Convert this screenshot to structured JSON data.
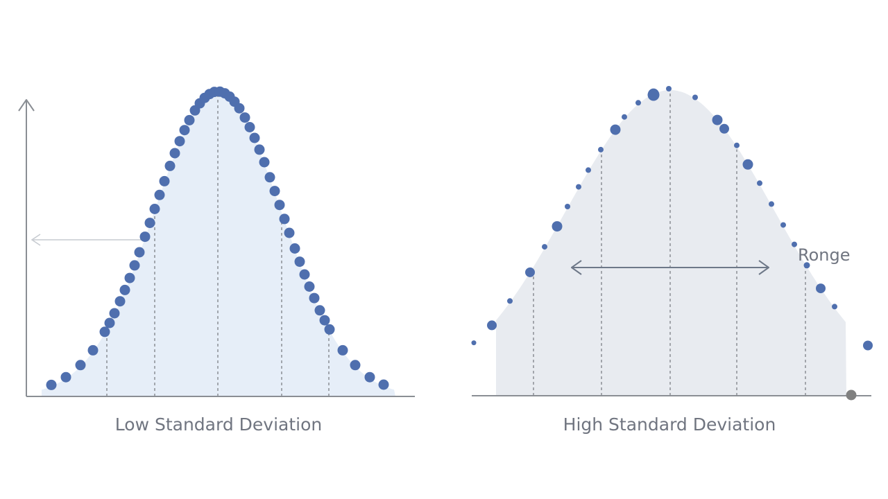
{
  "panels": [
    {
      "id": "low",
      "caption": "Low Standard Deviation",
      "distribution": "normal",
      "spread": "low",
      "colors": {
        "fill": "#e6eef8",
        "point": "#4f6fae",
        "axis": "#8a8e94",
        "guide": "#8a8e94"
      }
    },
    {
      "id": "high",
      "caption": "High Standard Deviation",
      "distribution": "normal",
      "spread": "high",
      "annotation": "Ronge",
      "colors": {
        "fill": "#e8ebf0",
        "point": "#4f6fae",
        "axis": "#8a8e94",
        "guide": "#8a8e94",
        "outlier": "#808080"
      }
    }
  ]
}
